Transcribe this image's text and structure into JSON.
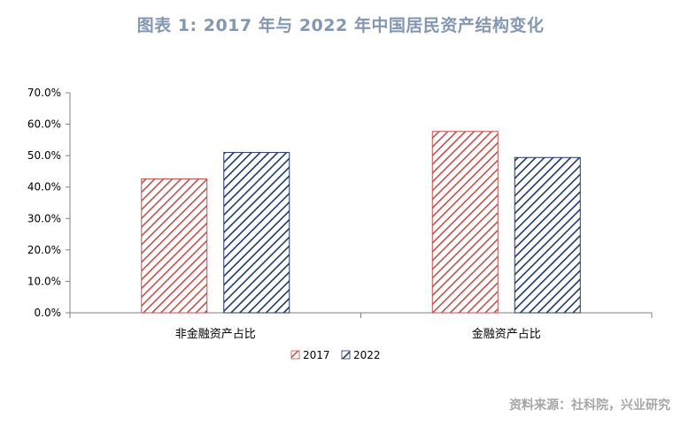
{
  "title": "图表 1:   2017 年与 2022 年中国居民资产结构变化",
  "source": "资料来源：社科院，兴业研究",
  "colors": {
    "series_2017": "#c0504d",
    "series_2022": "#1f3864"
  },
  "chart_data": {
    "type": "bar",
    "categories": [
      "非金融资产占比",
      "金融资产占比"
    ],
    "series": [
      {
        "name": "2017",
        "values": [
          42.6,
          57.7
        ]
      },
      {
        "name": "2022",
        "values": [
          51.0,
          49.4
        ]
      }
    ],
    "ylim": [
      0,
      70
    ],
    "yticks": [
      "0.0%",
      "10.0%",
      "20.0%",
      "30.0%",
      "40.0%",
      "50.0%",
      "60.0%",
      "70.0%"
    ],
    "legend": "bottom-center",
    "grid": false
  }
}
